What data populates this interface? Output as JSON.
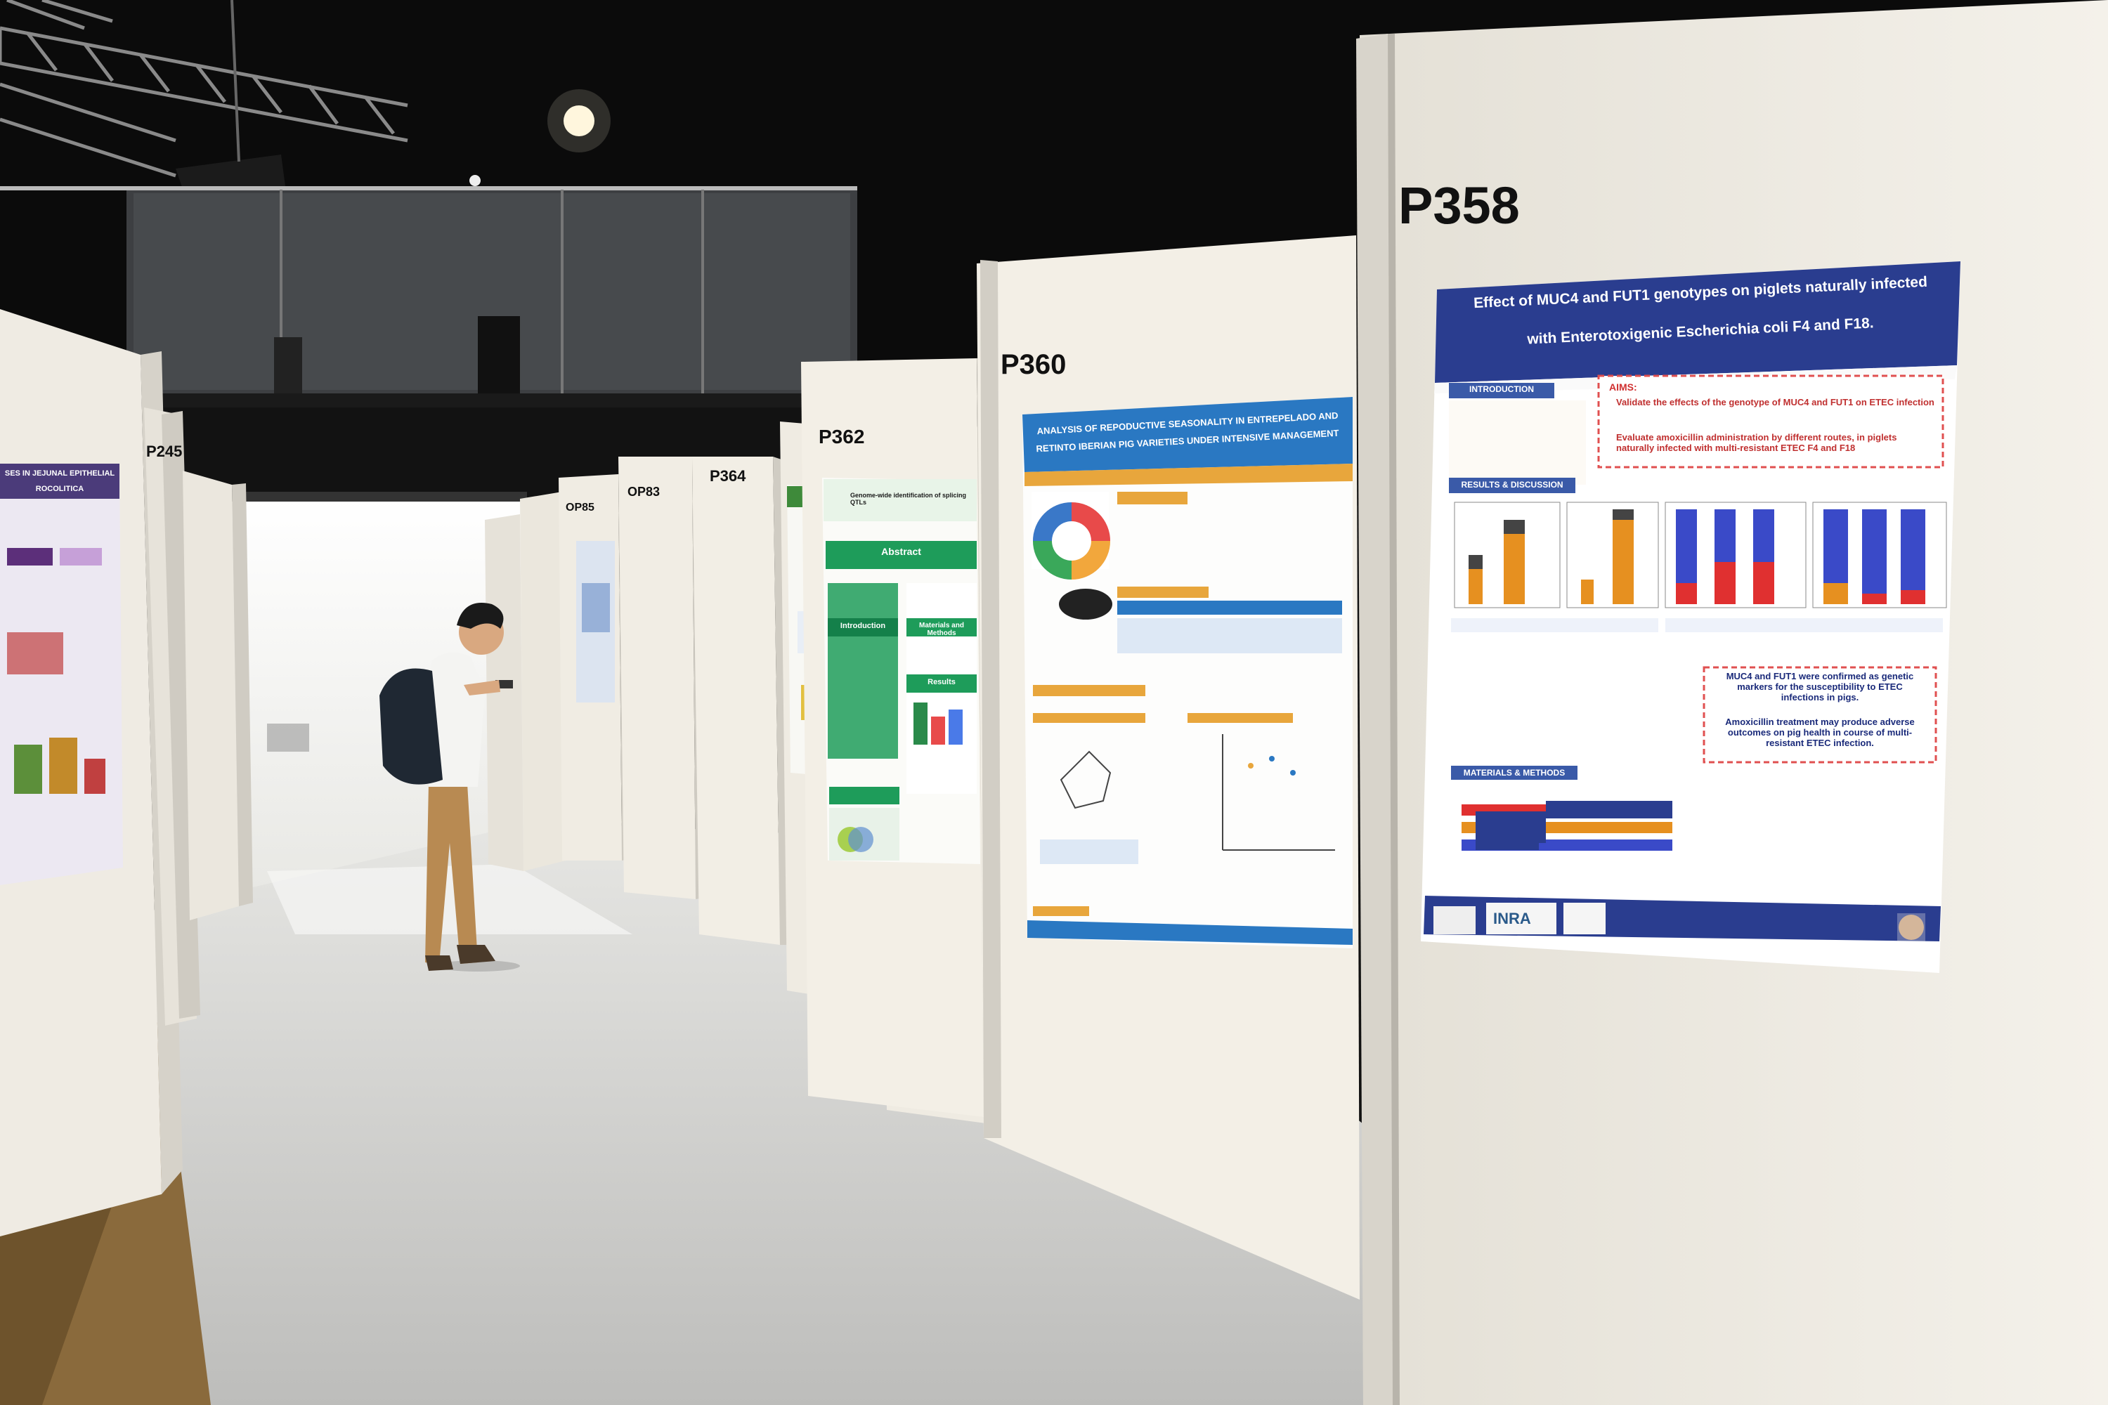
{
  "boards": {
    "p358": "P358",
    "p360": "P360",
    "p362": "P362",
    "p364": "P364",
    "op83": "OP83",
    "op85": "OP85",
    "p245": "P245"
  },
  "posters": {
    "p358": {
      "title_line1": "Effect of MUC4 and FUT1 genotypes on piglets naturally infected",
      "title_line2": "with Enterotoxigenic Escherichia coli F4 and F18.",
      "introduction": "INTRODUCTION",
      "aims": "AIMS:",
      "aims_text1": "Validate the effects of the genotype of MUC4 and FUT1 on ETEC infection",
      "aims_text2": "Evaluate amoxicillin administration by different routes, in piglets naturally infected with multi-resistant ETEC F4 and F18",
      "results": "RESULTS & DISCUSSION",
      "conclusion1": "MUC4 and FUT1 were confirmed as genetic markers for the susceptibility to ETEC infections in pigs.",
      "conclusion2": "Amoxicillin treatment may produce adverse outcomes on pig health in course of multi-resistant ETEC infection.",
      "methods": "MATERIALS & METHODS",
      "logo": "INRA"
    },
    "p360": {
      "title_line1": "ANALYSIS OF REPODUCTIVE SEASONALITY IN ENTREPELADO AND",
      "title_line2": "RETINTO IBERIAN PIG VARIETIES UNDER INTENSIVE MANAGEMENT"
    },
    "p362": {
      "title": "Genome-wide identification of splicing QTLs",
      "abstract": "Abstract",
      "introduction": "Introduction",
      "materials": "Materials and Methods",
      "results": "Results"
    },
    "left": {
      "title_line1": "SES IN JEJUNAL EPITHELIAL",
      "title_line2": "ROCOLITICA"
    }
  },
  "colors": {
    "ceiling": "#0c0c0c",
    "panel": "#f1ede4",
    "floor": "#c9c9c7",
    "poster_blue": "#2a3d8f",
    "poster_green": "#1e9c5a"
  }
}
